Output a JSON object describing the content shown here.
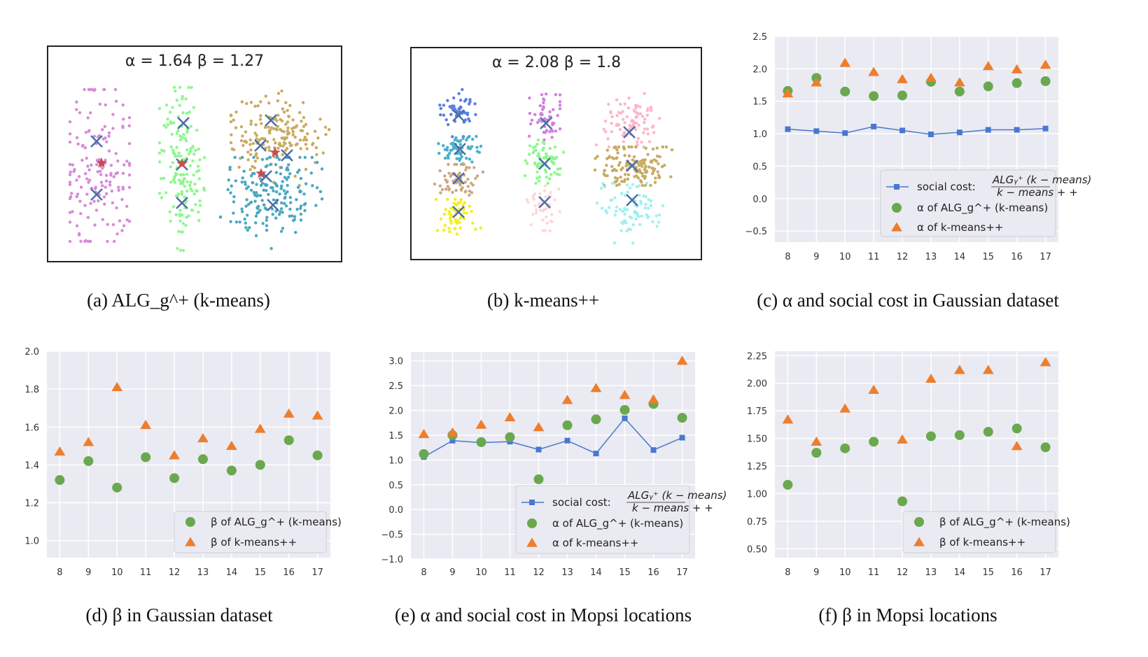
{
  "captions": {
    "a": "(a) ALG_g^+ (k-means)",
    "b": "(b) k-means++",
    "c": "(c) α and social cost in Gaussian dataset",
    "d": "(d) β in Gaussian dataset",
    "e": "(e) α and social cost in Mopsi locations",
    "f": "(f) β in Mopsi locations"
  },
  "colors": {
    "social": "#4878d0",
    "alg": "#6aa84f",
    "kpp": "#ee7d2c",
    "center_cross": "#4c6ea8",
    "star": "#c44e52",
    "panel_bg": "#eaeaf2"
  },
  "chart_data": [
    {
      "id": "a",
      "type": "scatter",
      "title": "α = 1.64    β = 1.27",
      "cluster_colors": [
        "#d88ad8",
        "#8ef78e",
        "#c9ab62",
        "#4aa8c0"
      ],
      "markers": [
        "x centers",
        "star points"
      ]
    },
    {
      "id": "b",
      "type": "scatter",
      "title": "α = 2.08    β = 1.8",
      "cluster_colors": [
        "#5b7fe0",
        "#4ab0c8",
        "#caa982",
        "#f0f020",
        "#d080e0",
        "#8ef78e",
        "#fdd8d8",
        "#ffb6c8",
        "#c9ab62",
        "#a0f0f0"
      ],
      "markers": [
        "x centers"
      ]
    },
    {
      "id": "c",
      "type": "line",
      "x": [
        8,
        9,
        10,
        11,
        12,
        13,
        14,
        15,
        16,
        17
      ],
      "ylim": [
        -0.67,
        2.5
      ],
      "yticks": [
        "-0.5",
        "0.0",
        "0.5",
        "1.0",
        "1.5",
        "2.0",
        "2.5"
      ],
      "grid": true,
      "legend": "bottom-right",
      "series": [
        {
          "name": "social cost: ALG_g^+(k − means) / k − means + +",
          "kind": "line",
          "values": [
            1.07,
            1.04,
            1.01,
            1.11,
            1.05,
            0.99,
            1.02,
            1.06,
            1.06,
            1.08
          ]
        },
        {
          "name": "α of ALG_g^+ (k-means)",
          "kind": "circle",
          "values": [
            1.66,
            1.86,
            1.65,
            1.58,
            1.59,
            1.8,
            1.65,
            1.73,
            1.78,
            1.81
          ]
        },
        {
          "name": "α of k-means++",
          "kind": "triangle",
          "values": [
            1.62,
            1.79,
            2.09,
            1.95,
            1.84,
            1.86,
            1.79,
            2.04,
            1.99,
            2.06
          ]
        }
      ]
    },
    {
      "id": "d",
      "type": "scatter",
      "x": [
        8,
        9,
        10,
        11,
        12,
        13,
        14,
        15,
        16,
        17
      ],
      "ylim": [
        0.91,
        2.0
      ],
      "yticks": [
        "1.0",
        "1.2",
        "1.4",
        "1.6",
        "1.8",
        "2.0"
      ],
      "grid": true,
      "legend": "bottom-right",
      "series": [
        {
          "name": "β of ALG_g^+ (k-means)",
          "kind": "circle",
          "values": [
            1.32,
            1.42,
            1.28,
            1.44,
            1.33,
            1.43,
            1.37,
            1.4,
            1.53,
            1.45
          ]
        },
        {
          "name": "β of k-means++",
          "kind": "triangle",
          "values": [
            1.47,
            1.52,
            1.81,
            1.61,
            1.45,
            1.54,
            1.5,
            1.59,
            1.67,
            1.66
          ]
        }
      ]
    },
    {
      "id": "e",
      "type": "line",
      "x": [
        8,
        9,
        10,
        11,
        12,
        13,
        14,
        15,
        16,
        17
      ],
      "ylim": [
        -1.0,
        3.18
      ],
      "yticks": [
        "-1.0",
        "-0.5",
        "0.0",
        "0.5",
        "1.0",
        "1.5",
        "2.0",
        "2.5",
        "3.0"
      ],
      "grid": true,
      "legend": "bottom-right",
      "series": [
        {
          "name": "social cost: ALG_g^+(k − means) / k − means + +",
          "kind": "line",
          "values": [
            1.06,
            1.39,
            1.35,
            1.37,
            1.21,
            1.39,
            1.13,
            1.84,
            1.2,
            1.45
          ]
        },
        {
          "name": "α of ALG_g^+ (k-means)",
          "kind": "circle",
          "values": [
            1.12,
            1.5,
            1.36,
            1.46,
            0.61,
            1.7,
            1.82,
            2.01,
            2.13,
            1.85
          ]
        },
        {
          "name": "α of k-means++",
          "kind": "triangle",
          "values": [
            1.52,
            1.55,
            1.71,
            1.86,
            1.66,
            2.21,
            2.45,
            2.31,
            2.22,
            3.0
          ]
        }
      ]
    },
    {
      "id": "f",
      "type": "scatter",
      "x": [
        8,
        9,
        10,
        11,
        12,
        13,
        14,
        15,
        16,
        17
      ],
      "ylim": [
        0.42,
        2.29
      ],
      "yticks": [
        "0.50",
        "0.75",
        "1.00",
        "1.25",
        "1.50",
        "1.75",
        "2.00",
        "2.25"
      ],
      "grid": true,
      "legend": "bottom-right",
      "series": [
        {
          "name": "β of ALG_g^+ (k-means)",
          "kind": "circle",
          "values": [
            1.08,
            1.37,
            1.41,
            1.47,
            0.93,
            1.52,
            1.53,
            1.56,
            1.59,
            1.42
          ]
        },
        {
          "name": "β of k-means++",
          "kind": "triangle",
          "values": [
            1.67,
            1.47,
            1.77,
            1.94,
            1.49,
            2.04,
            2.12,
            2.12,
            1.43,
            2.19
          ]
        }
      ]
    }
  ]
}
